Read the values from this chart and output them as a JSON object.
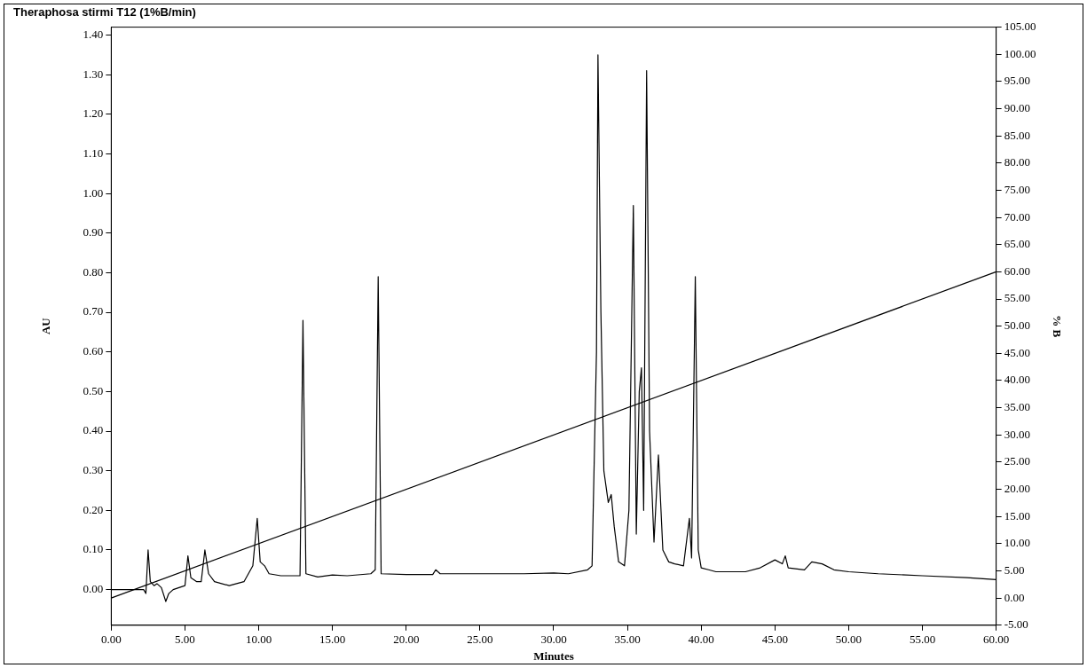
{
  "chart_data": {
    "type": "line",
    "title": "Theraphosa stirmi T12 (1%B/min)",
    "xlabel": "Minutes",
    "ylabel": "AU",
    "y2label": "% B",
    "grid": false,
    "legend": false,
    "marker": "none",
    "xlim": [
      0,
      60
    ],
    "xticks": [
      {
        "value": 0,
        "label": "0.00"
      },
      {
        "value": 5,
        "label": "5.00"
      },
      {
        "value": 10,
        "label": "10.00"
      },
      {
        "value": 15,
        "label": "15.00"
      },
      {
        "value": 20,
        "label": "20.00"
      },
      {
        "value": 25,
        "label": "25.00"
      },
      {
        "value": 30,
        "label": "30.00"
      },
      {
        "value": 35,
        "label": "35.00"
      },
      {
        "value": 40,
        "label": "40.00"
      },
      {
        "value": 45,
        "label": "45.00"
      },
      {
        "value": 50,
        "label": "50.00"
      },
      {
        "value": 55,
        "label": "55.00"
      },
      {
        "value": 60,
        "label": "60.00"
      }
    ],
    "ylim": [
      -0.09,
      1.42
    ],
    "yticks": [
      {
        "value": 0,
        "label": "0.00"
      },
      {
        "value": 0.1,
        "label": "0.10"
      },
      {
        "value": 0.2,
        "label": "0.20"
      },
      {
        "value": 0.3,
        "label": "0.30"
      },
      {
        "value": 0.4,
        "label": "0.40"
      },
      {
        "value": 0.5,
        "label": "0.50"
      },
      {
        "value": 0.6,
        "label": "0.60"
      },
      {
        "value": 0.7,
        "label": "0.70"
      },
      {
        "value": 0.8,
        "label": "0.80"
      },
      {
        "value": 0.9,
        "label": "0.90"
      },
      {
        "value": 1,
        "label": "1.00"
      },
      {
        "value": 1.1,
        "label": "1.10"
      },
      {
        "value": 1.2,
        "label": "1.20"
      },
      {
        "value": 1.3,
        "label": "1.30"
      },
      {
        "value": 1.4,
        "label": "1.40"
      }
    ],
    "y2lim": [
      -5,
      105
    ],
    "y2ticks": [
      {
        "value": -5,
        "label": "-5.00"
      },
      {
        "value": 0,
        "label": "0.00"
      },
      {
        "value": 5,
        "label": "5.00"
      },
      {
        "value": 10,
        "label": "10.00"
      },
      {
        "value": 15,
        "label": "15.00"
      },
      {
        "value": 20,
        "label": "20.00"
      },
      {
        "value": 25,
        "label": "25.00"
      },
      {
        "value": 30,
        "label": "30.00"
      },
      {
        "value": 35,
        "label": "35.00"
      },
      {
        "value": 40,
        "label": "40.00"
      },
      {
        "value": 45,
        "label": "45.00"
      },
      {
        "value": 50,
        "label": "50.00"
      },
      {
        "value": 55,
        "label": "55.00"
      },
      {
        "value": 60,
        "label": "60.00"
      },
      {
        "value": 65,
        "label": "65.00"
      },
      {
        "value": 70,
        "label": "70.00"
      },
      {
        "value": 75,
        "label": "75.00"
      },
      {
        "value": 80,
        "label": "80.00"
      },
      {
        "value": 85,
        "label": "85.00"
      },
      {
        "value": 90,
        "label": "90.00"
      },
      {
        "value": 95,
        "label": "95.00"
      },
      {
        "value": 100,
        "label": "100.00"
      },
      {
        "value": 105,
        "label": "105.00"
      }
    ],
    "series": [
      {
        "color": "#000000",
        "x": [
          0,
          2.2,
          2.35,
          2.5,
          2.65,
          2.9,
          3.1,
          3.4,
          3.7,
          3.9,
          4.2,
          4.6,
          5.0,
          5.2,
          5.4,
          5.8,
          6.1,
          6.35,
          6.6,
          7.0,
          8.0,
          9.0,
          9.6,
          9.9,
          10.1,
          10.4,
          10.7,
          11.5,
          12.8,
          13.0,
          13.2,
          14.0,
          15.0,
          16.0,
          17.6,
          17.9,
          18.1,
          18.3,
          20,
          21.8,
          22.0,
          22.3,
          25,
          28,
          30,
          31,
          32.3,
          32.6,
          32.9,
          33.0,
          33.2,
          33.4,
          33.7,
          33.9,
          34.1,
          34.4,
          34.8,
          35.1,
          35.4,
          35.6,
          35.8,
          35.95,
          36.1,
          36.3,
          36.5,
          36.8,
          37.1,
          37.4,
          37.8,
          38.2,
          38.8,
          39.2,
          39.35,
          39.6,
          39.8,
          40.0,
          40.5,
          41,
          42,
          43,
          44,
          45,
          45.5,
          45.7,
          45.9,
          47,
          47.5,
          48.2,
          49,
          50,
          52,
          55,
          58,
          60
        ],
        "values": [
          0,
          0,
          -0.01,
          0.1,
          0.02,
          0.01,
          0.015,
          0.005,
          -0.03,
          -0.01,
          0,
          0.005,
          0.01,
          0.085,
          0.03,
          0.02,
          0.02,
          0.1,
          0.04,
          0.02,
          0.01,
          0.02,
          0.06,
          0.18,
          0.07,
          0.06,
          0.04,
          0.035,
          0.035,
          0.68,
          0.04,
          0.032,
          0.037,
          0.035,
          0.04,
          0.05,
          0.79,
          0.04,
          0.038,
          0.038,
          0.05,
          0.04,
          0.04,
          0.04,
          0.042,
          0.04,
          0.05,
          0.06,
          0.6,
          1.35,
          0.7,
          0.3,
          0.22,
          0.24,
          0.16,
          0.07,
          0.06,
          0.2,
          0.97,
          0.14,
          0.5,
          0.56,
          0.2,
          1.31,
          0.4,
          0.12,
          0.34,
          0.1,
          0.07,
          0.065,
          0.06,
          0.18,
          0.08,
          0.79,
          0.1,
          0.055,
          0.05,
          0.045,
          0.045,
          0.045,
          0.055,
          0.075,
          0.065,
          0.085,
          0.055,
          0.05,
          0.07,
          0.065,
          0.05,
          0.045,
          0.04,
          0.035,
          0.03,
          0.025
        ]
      },
      {
        "axis": "y2",
        "color": "#000000",
        "x": [
          0,
          60
        ],
        "values": [
          0,
          60
        ]
      }
    ]
  }
}
